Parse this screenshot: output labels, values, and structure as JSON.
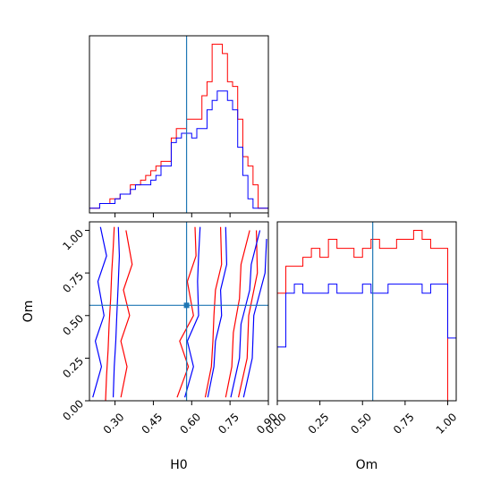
{
  "chart_data": {
    "type": "corner",
    "parameters": [
      "H0",
      "Om"
    ],
    "truth": {
      "H0": 0.58,
      "Om": 0.56
    },
    "colors": {
      "red": "#ff0000",
      "blue": "#0000ff",
      "truth": "#1f77b4"
    },
    "series": [
      {
        "color": "red"
      },
      {
        "color": "blue"
      }
    ],
    "axes": {
      "H0": {
        "xlim": [
          0.2,
          0.9
        ],
        "ticks": [
          "0.30",
          "0.45",
          "0.60",
          "0.75",
          "0.90"
        ],
        "tick_values": [
          0.3,
          0.45,
          0.6,
          0.75,
          0.9
        ]
      },
      "Om": {
        "xlim": [
          0.0,
          1.05
        ],
        "ticks": [
          "0.00",
          "0.25",
          "0.50",
          "0.75",
          "1.00"
        ],
        "tick_values": [
          0.0,
          0.25,
          0.5,
          0.75,
          1.0
        ]
      }
    },
    "hist_H0": {
      "bin_edges": [
        0.2,
        0.22,
        0.24,
        0.26,
        0.28,
        0.3,
        0.32,
        0.34,
        0.36,
        0.38,
        0.4,
        0.42,
        0.44,
        0.46,
        0.48,
        0.5,
        0.52,
        0.54,
        0.56,
        0.58,
        0.6,
        0.62,
        0.64,
        0.66,
        0.68,
        0.7,
        0.72,
        0.74,
        0.76,
        0.78,
        0.8,
        0.82,
        0.84,
        0.86,
        0.88,
        0.9
      ],
      "red": [
        1,
        1,
        2,
        2,
        3,
        3,
        4,
        4,
        6,
        6,
        7,
        8,
        9,
        10,
        11,
        11,
        16,
        18,
        18,
        20,
        20,
        20,
        25,
        28,
        36,
        36,
        34,
        28,
        27,
        20,
        12,
        10,
        6,
        1,
        1
      ],
      "blue": [
        1,
        1,
        2,
        2,
        2,
        3,
        4,
        4,
        5,
        6,
        6,
        6,
        7,
        8,
        10,
        10,
        15,
        16,
        17,
        17,
        16,
        18,
        18,
        22,
        24,
        26,
        26,
        24,
        22,
        14,
        8,
        3,
        1,
        1,
        1
      ]
    },
    "hist_Om": {
      "bin_edges": [
        0.0,
        0.05,
        0.1,
        0.15,
        0.2,
        0.25,
        0.3,
        0.35,
        0.4,
        0.45,
        0.5,
        0.55,
        0.6,
        0.65,
        0.7,
        0.75,
        0.8,
        0.85,
        0.9,
        0.95,
        1.0,
        1.05
      ],
      "red": [
        12,
        15,
        15,
        16,
        17,
        16,
        18,
        17,
        17,
        16,
        17,
        18,
        17,
        17,
        18,
        18,
        19,
        18,
        17,
        17,
        0
      ],
      "blue": [
        6,
        12,
        13,
        12,
        12,
        12,
        13,
        12,
        12,
        12,
        13,
        12,
        12,
        13,
        13,
        13,
        13,
        12,
        13,
        13,
        7
      ]
    },
    "contours_2d": {
      "x_param": "H0",
      "y_param": "Om",
      "red": [
        [
          [
            0.27,
            0.0
          ],
          [
            0.26,
            0.15
          ],
          [
            0.28,
            0.3
          ],
          [
            0.27,
            0.45
          ],
          [
            0.29,
            0.6
          ],
          [
            0.28,
            0.75
          ],
          [
            0.3,
            0.9
          ],
          [
            0.29,
            1.02
          ]
        ],
        [
          [
            0.33,
            0.02
          ],
          [
            0.34,
            0.2
          ],
          [
            0.33,
            0.35
          ],
          [
            0.35,
            0.5
          ],
          [
            0.34,
            0.65
          ],
          [
            0.36,
            0.8
          ],
          [
            0.35,
            1.0
          ]
        ],
        [
          [
            0.55,
            0.02
          ],
          [
            0.58,
            0.2
          ],
          [
            0.56,
            0.35
          ],
          [
            0.6,
            0.5
          ],
          [
            0.59,
            0.7
          ],
          [
            0.61,
            0.85
          ],
          [
            0.62,
            1.02
          ]
        ],
        [
          [
            0.66,
            0.02
          ],
          [
            0.67,
            0.2
          ],
          [
            0.69,
            0.35
          ],
          [
            0.68,
            0.5
          ],
          [
            0.7,
            0.65
          ],
          [
            0.71,
            0.8
          ],
          [
            0.72,
            1.02
          ]
        ],
        [
          [
            0.74,
            0.02
          ],
          [
            0.75,
            0.2
          ],
          [
            0.77,
            0.4
          ],
          [
            0.78,
            0.6
          ],
          [
            0.8,
            0.8
          ],
          [
            0.82,
            1.0
          ]
        ],
        [
          [
            0.79,
            0.02
          ],
          [
            0.81,
            0.25
          ],
          [
            0.83,
            0.5
          ],
          [
            0.85,
            0.75
          ],
          [
            0.86,
            1.0
          ]
        ]
      ],
      "blue": [
        [
          [
            0.22,
            0.02
          ],
          [
            0.24,
            0.2
          ],
          [
            0.23,
            0.35
          ],
          [
            0.25,
            0.5
          ],
          [
            0.24,
            0.7
          ],
          [
            0.26,
            0.85
          ],
          [
            0.25,
            1.02
          ]
        ],
        [
          [
            0.3,
            0.02
          ],
          [
            0.29,
            0.2
          ],
          [
            0.31,
            0.35
          ],
          [
            0.3,
            0.5
          ],
          [
            0.32,
            0.7
          ],
          [
            0.31,
            0.85
          ],
          [
            0.32,
            1.02
          ]
        ],
        [
          [
            0.58,
            0.02
          ],
          [
            0.6,
            0.2
          ],
          [
            0.59,
            0.35
          ],
          [
            0.62,
            0.5
          ],
          [
            0.63,
            0.7
          ],
          [
            0.62,
            0.85
          ],
          [
            0.64,
            1.02
          ]
        ],
        [
          [
            0.67,
            0.02
          ],
          [
            0.68,
            0.2
          ],
          [
            0.7,
            0.35
          ],
          [
            0.71,
            0.5
          ],
          [
            0.72,
            0.65
          ],
          [
            0.73,
            0.8
          ],
          [
            0.74,
            1.02
          ]
        ],
        [
          [
            0.76,
            0.02
          ],
          [
            0.78,
            0.25
          ],
          [
            0.8,
            0.45
          ],
          [
            0.82,
            0.65
          ],
          [
            0.84,
            0.8
          ],
          [
            0.86,
            1.0
          ]
        ],
        [
          [
            0.81,
            0.02
          ],
          [
            0.83,
            0.25
          ],
          [
            0.85,
            0.5
          ],
          [
            0.88,
            0.75
          ],
          [
            0.9,
            0.95
          ]
        ]
      ]
    }
  }
}
